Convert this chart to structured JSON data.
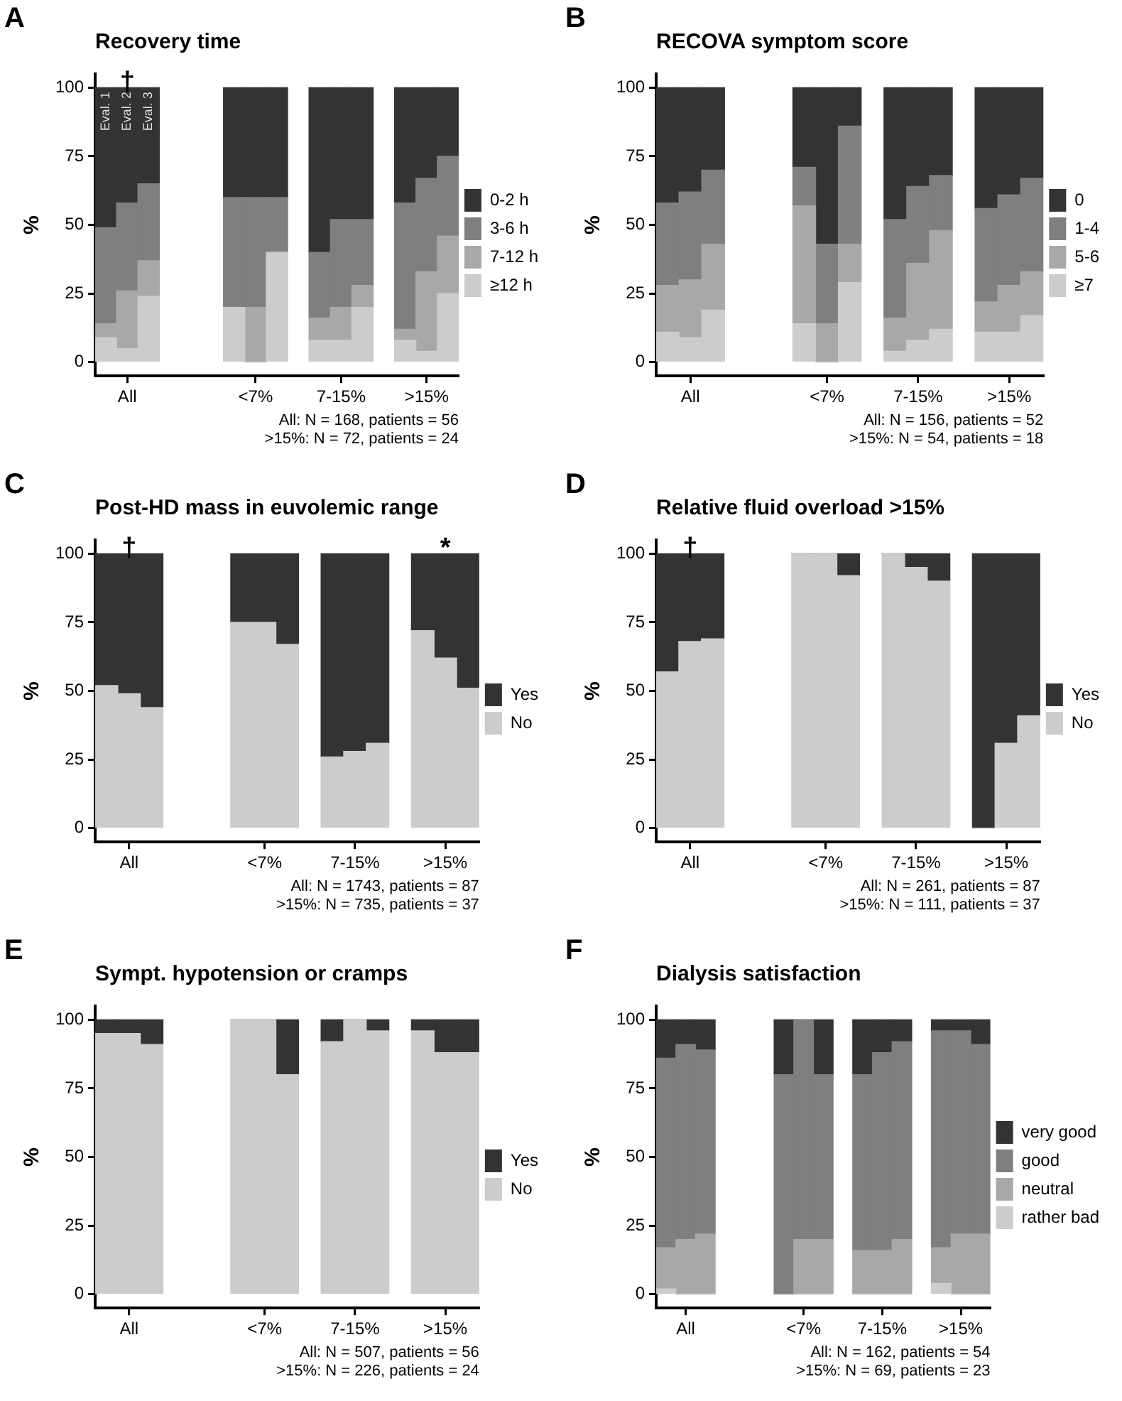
{
  "chart_data": [
    {
      "type": "bar",
      "stacked": true,
      "title": "Recovery time",
      "ylabel": "%",
      "legend": "right",
      "grid": false,
      "ylim": [
        -5,
        105
      ],
      "yticks": [
        0,
        25,
        50,
        75,
        100
      ],
      "categories": [
        null,
        "All",
        null,
        null,
        null,
        null,
        null,
        "<7%",
        null,
        null,
        null,
        "7-15%",
        null,
        null,
        null,
        ">15%",
        null
      ],
      "series": [
        {
          "name": "≥12 h",
          "color": "#cccccc",
          "values": [
            9,
            5,
            24,
            null,
            null,
            null,
            20,
            0,
            40,
            null,
            8,
            8,
            20,
            null,
            8,
            4,
            25
          ]
        },
        {
          "name": "7-12 h",
          "color": "#a8a8a8",
          "values": [
            5,
            21,
            13,
            null,
            null,
            null,
            0,
            20,
            0,
            null,
            8,
            12,
            8,
            null,
            4,
            29,
            21
          ]
        },
        {
          "name": "3-6 h",
          "color": "#7f7f7f",
          "values": [
            35,
            32,
            28,
            null,
            null,
            null,
            40,
            40,
            20,
            null,
            24,
            32,
            24,
            null,
            46,
            34,
            29
          ]
        },
        {
          "name": "0-2 h",
          "color": "#333333",
          "values": [
            51,
            42,
            35,
            null,
            null,
            null,
            40,
            40,
            40,
            null,
            60,
            48,
            48,
            null,
            42,
            33,
            25
          ]
        }
      ],
      "annotations": [
        "A",
        {
          "text": "†",
          "x": "All",
          "y": 100
        },
        {
          "text": "Eval. 1",
          "x": "All",
          "y": 100
        },
        {
          "text": "Eval. 2",
          "x": "All",
          "y": 100
        },
        {
          "text": "Eval. 3",
          "x": "All",
          "y": 100
        },
        "All: N = 168, patients = 56",
        ">15%: N = 72, patients = 24"
      ]
    },
    {
      "type": "bar",
      "stacked": true,
      "title": "RECOVA symptom score",
      "ylabel": "%",
      "legend": "right",
      "grid": false,
      "ylim": [
        -5,
        105
      ],
      "yticks": [
        0,
        25,
        50,
        75,
        100
      ],
      "categories": [
        null,
        "All",
        null,
        null,
        null,
        null,
        null,
        "<7%",
        null,
        null,
        null,
        "7-15%",
        null,
        null,
        null,
        ">15%",
        null
      ],
      "series": [
        {
          "name": "≥7",
          "color": "#cccccc",
          "values": [
            11,
            9,
            19,
            null,
            null,
            null,
            14,
            0,
            29,
            null,
            4,
            8,
            12,
            null,
            11,
            11,
            17
          ]
        },
        {
          "name": "5-6",
          "color": "#a8a8a8",
          "values": [
            17,
            21,
            24,
            null,
            null,
            null,
            43,
            14,
            14,
            null,
            12,
            28,
            36,
            null,
            11,
            17,
            16
          ]
        },
        {
          "name": "1-4",
          "color": "#7f7f7f",
          "values": [
            30,
            32,
            27,
            null,
            null,
            null,
            14,
            29,
            43,
            null,
            36,
            28,
            20,
            null,
            34,
            33,
            34
          ]
        },
        {
          "name": "0",
          "color": "#333333",
          "values": [
            42,
            38,
            30,
            null,
            null,
            null,
            29,
            57,
            14,
            null,
            48,
            36,
            32,
            null,
            44,
            39,
            33
          ]
        }
      ],
      "annotations": [
        "B",
        "All: N = 156, patients = 52",
        ">15%: N = 54, patients = 18"
      ]
    },
    {
      "type": "bar",
      "stacked": true,
      "title": "Post-HD mass in euvolemic range",
      "ylabel": "%",
      "legend": "right",
      "grid": false,
      "ylim": [
        -5,
        105
      ],
      "yticks": [
        0,
        25,
        50,
        75,
        100
      ],
      "categories": [
        null,
        "All",
        null,
        null,
        null,
        null,
        null,
        "<7%",
        null,
        null,
        null,
        "7-15%",
        null,
        null,
        null,
        ">15%",
        null
      ],
      "series": [
        {
          "name": "No",
          "color": "#cccccc",
          "values": [
            52,
            49,
            44,
            null,
            null,
            null,
            75,
            75,
            67,
            null,
            26,
            28,
            31,
            null,
            72,
            62,
            51
          ]
        },
        {
          "name": "Yes",
          "color": "#333333",
          "values": [
            48,
            51,
            56,
            null,
            null,
            null,
            25,
            25,
            33,
            null,
            74,
            72,
            69,
            null,
            28,
            38,
            49
          ]
        }
      ],
      "annotations": [
        "C",
        {
          "text": "†",
          "x": "All",
          "y": 100
        },
        {
          "text": "*",
          "x": ">15%",
          "y": 100
        },
        "All: N = 1743, patients = 87",
        ">15%: N = 735, patients = 37"
      ]
    },
    {
      "type": "bar",
      "stacked": true,
      "title": "Relative fluid overload >15%",
      "ylabel": "%",
      "legend": "right",
      "grid": false,
      "ylim": [
        -5,
        105
      ],
      "yticks": [
        0,
        25,
        50,
        75,
        100
      ],
      "categories": [
        null,
        "All",
        null,
        null,
        null,
        null,
        null,
        "<7%",
        null,
        null,
        null,
        "7-15%",
        null,
        null,
        null,
        ">15%",
        null
      ],
      "series": [
        {
          "name": "No",
          "color": "#cccccc",
          "values": [
            57,
            68,
            69,
            null,
            null,
            null,
            100,
            100,
            92,
            null,
            100,
            95,
            90,
            null,
            0,
            31,
            41
          ]
        },
        {
          "name": "Yes",
          "color": "#333333",
          "values": [
            43,
            32,
            31,
            null,
            null,
            null,
            0,
            0,
            8,
            null,
            0,
            5,
            10,
            null,
            100,
            69,
            59
          ]
        }
      ],
      "annotations": [
        "D",
        {
          "text": "†",
          "x": "All",
          "y": 100
        },
        "All: N = 261, patients = 87",
        ">15%: N = 111, patients = 37"
      ]
    },
    {
      "type": "bar",
      "stacked": true,
      "title": "Sympt. hypotension or cramps",
      "ylabel": "%",
      "legend": "right",
      "grid": false,
      "ylim": [
        -5,
        105
      ],
      "yticks": [
        0,
        25,
        50,
        75,
        100
      ],
      "categories": [
        null,
        "All",
        null,
        null,
        null,
        null,
        null,
        "<7%",
        null,
        null,
        null,
        "7-15%",
        null,
        null,
        null,
        ">15%",
        null
      ],
      "series": [
        {
          "name": "No",
          "color": "#cccccc",
          "values": [
            95,
            95,
            91,
            null,
            null,
            null,
            100,
            100,
            80,
            null,
            92,
            100,
            96,
            null,
            96,
            88,
            88
          ]
        },
        {
          "name": "Yes",
          "color": "#333333",
          "values": [
            5,
            5,
            9,
            null,
            null,
            null,
            0,
            0,
            20,
            null,
            8,
            0,
            4,
            null,
            4,
            12,
            12
          ]
        }
      ],
      "annotations": [
        "E",
        "All: N = 507, patients = 56",
        ">15%: N = 226, patients = 24"
      ]
    },
    {
      "type": "bar",
      "stacked": true,
      "title": "Dialysis satisfaction",
      "ylabel": "%",
      "legend": "right",
      "grid": false,
      "ylim": [
        -5,
        105
      ],
      "yticks": [
        0,
        25,
        50,
        75,
        100
      ],
      "categories": [
        null,
        "All",
        null,
        null,
        null,
        null,
        null,
        "<7%",
        null,
        null,
        null,
        "7-15%",
        null,
        null,
        null,
        ">15%",
        null
      ],
      "series": [
        {
          "name": "rather bad",
          "color": "#cccccc",
          "values": [
            2,
            0,
            0,
            null,
            null,
            null,
            0,
            0,
            0,
            null,
            0,
            0,
            0,
            null,
            4,
            0,
            0
          ]
        },
        {
          "name": "neutral",
          "color": "#a8a8a8",
          "values": [
            15,
            20,
            22,
            null,
            null,
            null,
            0,
            20,
            20,
            null,
            16,
            16,
            20,
            null,
            13,
            22,
            22
          ]
        },
        {
          "name": "good",
          "color": "#7f7f7f",
          "values": [
            69,
            71,
            67,
            null,
            null,
            null,
            80,
            80,
            60,
            null,
            64,
            72,
            72,
            null,
            79,
            74,
            69
          ]
        },
        {
          "name": "very good",
          "color": "#333333",
          "values": [
            14,
            9,
            11,
            null,
            null,
            null,
            20,
            0,
            20,
            null,
            20,
            12,
            8,
            null,
            4,
            4,
            9
          ]
        }
      ],
      "annotations": [
        "F",
        "All: N = 162, patients = 54",
        ">15%: N = 69, patients = 23"
      ]
    }
  ]
}
